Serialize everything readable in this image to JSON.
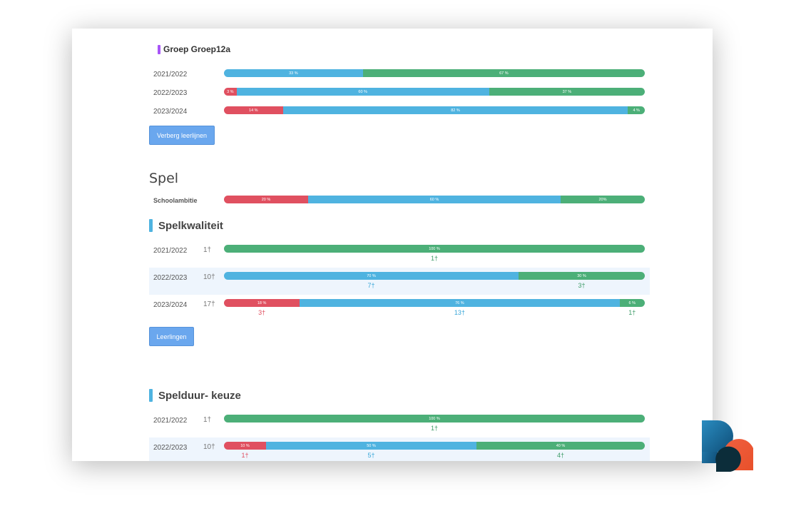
{
  "group": {
    "title": "Groep Groep12a"
  },
  "group_rows": [
    {
      "year": "2021/2022",
      "segments": [
        {
          "color": "blue",
          "pct": 33,
          "label": "33 %"
        },
        {
          "color": "green",
          "pct": 67,
          "label": "67 %"
        }
      ]
    },
    {
      "year": "2022/2023",
      "segments": [
        {
          "color": "red",
          "pct": 3,
          "label": "3 %"
        },
        {
          "color": "blue",
          "pct": 60,
          "label": "60 %"
        },
        {
          "color": "green",
          "pct": 37,
          "label": "37 %"
        }
      ]
    },
    {
      "year": "2023/2024",
      "segments": [
        {
          "color": "red",
          "pct": 14,
          "label": "14 %"
        },
        {
          "color": "blue",
          "pct": 82,
          "label": "82 %"
        },
        {
          "color": "green",
          "pct": 4,
          "label": "4 %"
        }
      ]
    }
  ],
  "buttons": {
    "hide_lines": "Verberg leerlijnen",
    "students": "Leerlingen"
  },
  "section": {
    "title": "Spel"
  },
  "ambition": {
    "label": "Schoolambitie",
    "segments": [
      {
        "color": "red",
        "pct": 20,
        "label": "20 %"
      },
      {
        "color": "blue",
        "pct": 60,
        "label": "60 %"
      },
      {
        "color": "green",
        "pct": 20,
        "label": "20%"
      }
    ]
  },
  "spelkwaliteit": {
    "title": "Spelkwaliteit",
    "rows": [
      {
        "year": "2021/2022",
        "count": "1",
        "segments": [
          {
            "color": "green",
            "pct": 100,
            "label": "100 %",
            "marker": "1"
          }
        ]
      },
      {
        "year": "2022/2023",
        "count": "10",
        "segments": [
          {
            "color": "blue",
            "pct": 70,
            "label": "70 %",
            "marker": "7"
          },
          {
            "color": "green",
            "pct": 30,
            "label": "30 %",
            "marker": "3"
          }
        ]
      },
      {
        "year": "2023/2024",
        "count": "17",
        "segments": [
          {
            "color": "red",
            "pct": 18,
            "label": "18 %",
            "marker": "3"
          },
          {
            "color": "blue",
            "pct": 76,
            "label": "76 %",
            "marker": "13"
          },
          {
            "color": "green",
            "pct": 6,
            "label": "6 %",
            "marker": "1"
          }
        ]
      }
    ]
  },
  "speelduur": {
    "title": "Spelduur- keuze",
    "rows": [
      {
        "year": "2021/2022",
        "count": "1",
        "segments": [
          {
            "color": "green",
            "pct": 100,
            "label": "100 %",
            "marker": "1"
          }
        ]
      },
      {
        "year": "2022/2023",
        "count": "10",
        "segments": [
          {
            "color": "red",
            "pct": 10,
            "label": "10 %",
            "marker": "1"
          },
          {
            "color": "blue",
            "pct": 50,
            "label": "50 %",
            "marker": "5"
          },
          {
            "color": "green",
            "pct": 40,
            "label": "40 %",
            "marker": "4"
          }
        ]
      }
    ]
  },
  "colors": {
    "red": "#e05060",
    "blue": "#4fb3e0",
    "green": "#4caf78",
    "button": "#6aa7ee",
    "group_accent": "#a855f7"
  },
  "icons": {
    "student": "person-icon"
  }
}
